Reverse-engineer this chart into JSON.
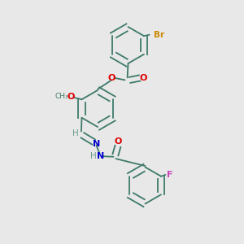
{
  "bg_color": "#e8e8e8",
  "bond_color": "#3d7a6a",
  "atom_colors": {
    "Br": "#cc8800",
    "O": "#dd0000",
    "N": "#0000cc",
    "F": "#cc44bb",
    "H": "#6a9a8a",
    "C": "#3d7a6a"
  },
  "figsize": [
    3.0,
    3.0
  ],
  "dpi": 100,
  "lw": 1.3,
  "r_hex": 0.075
}
